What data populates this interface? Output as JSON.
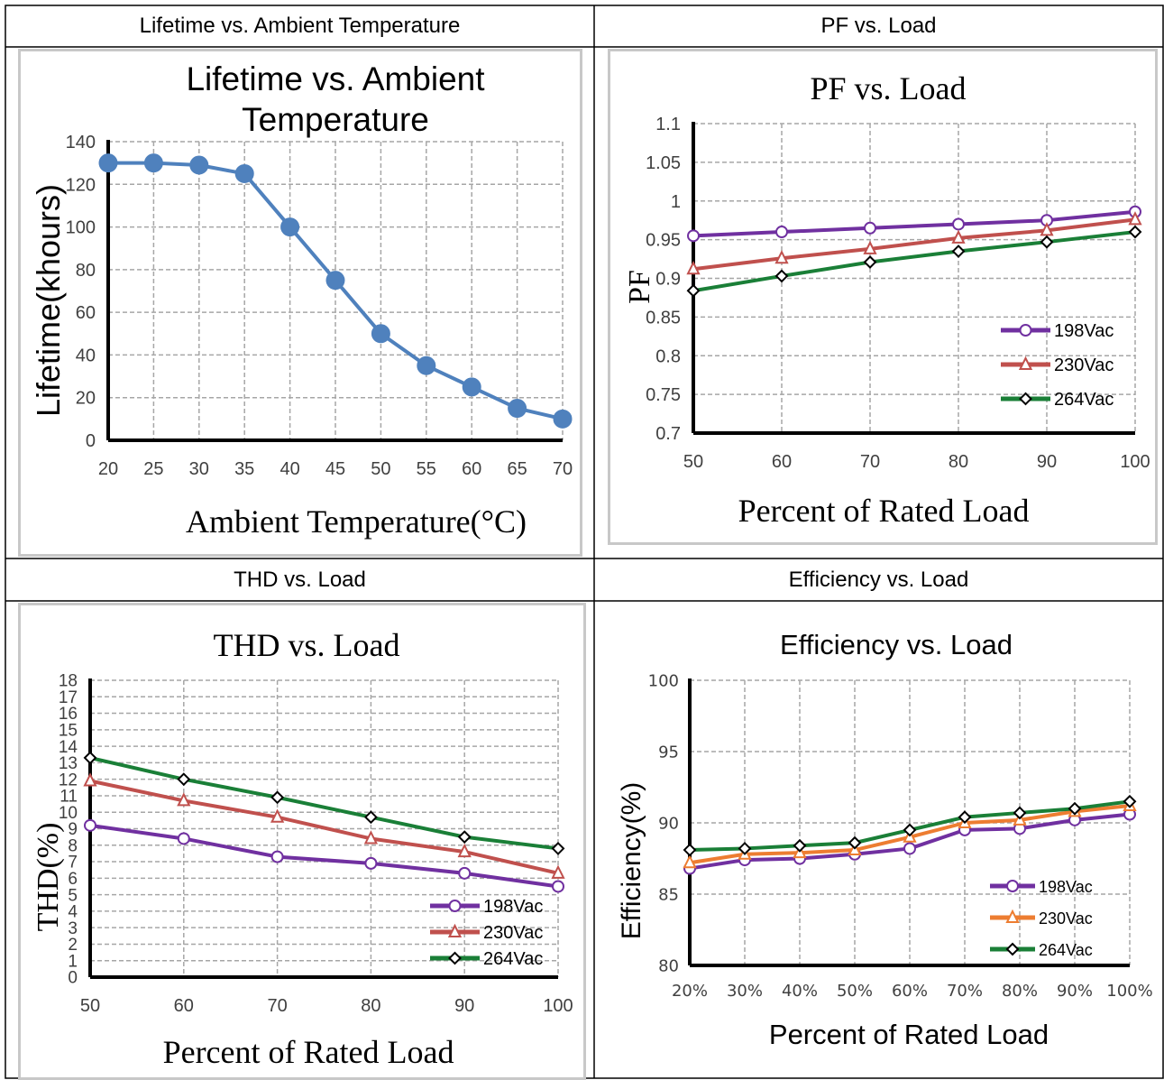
{
  "cells": [
    {
      "title": "Lifetime vs. Ambient Temperature"
    },
    {
      "title": "PF vs. Load"
    },
    {
      "title": "THD vs. Load"
    },
    {
      "title": "Efficiency vs. Load"
    }
  ],
  "chart_data": [
    {
      "type": "line",
      "title": "Lifetime vs. Ambient Temperature",
      "title_lines": [
        "Lifetime vs. Ambient",
        "Temperature"
      ],
      "xlabel": "Ambient Temperature(°C)",
      "ylabel": "Lifetime(khours)",
      "x": [
        20,
        25,
        30,
        35,
        40,
        45,
        50,
        55,
        60,
        65,
        70
      ],
      "xlim": [
        20,
        70
      ],
      "ylim": [
        0,
        140
      ],
      "yticks": [
        "0",
        "20",
        "40",
        "60",
        "80",
        "100",
        "120",
        "140"
      ],
      "xticks": [
        "20",
        "25",
        "30",
        "35",
        "40",
        "45",
        "50",
        "55",
        "60",
        "65",
        "70"
      ],
      "grid": true,
      "series": [
        {
          "values": [
            130,
            130,
            129,
            125,
            100,
            75,
            50,
            35,
            25,
            15,
            10
          ],
          "color": "#4f81bd",
          "marker": "filled-circle"
        }
      ]
    },
    {
      "type": "line",
      "title": "PF vs. Load",
      "xlabel": "Percent of Rated Load",
      "ylabel": "PF",
      "x": [
        50,
        60,
        70,
        80,
        90,
        100
      ],
      "xlim": [
        50,
        100
      ],
      "ylim": [
        0.7,
        1.1
      ],
      "yticks": [
        "0.7",
        "0.75",
        "0.8",
        "0.85",
        "0.9",
        "0.95",
        "1",
        "1.05",
        "1.1"
      ],
      "xticks": [
        "50",
        "60",
        "70",
        "80",
        "90",
        "100"
      ],
      "grid": true,
      "legend": "bottom-right",
      "series": [
        {
          "name": "198Vac",
          "values": [
            0.955,
            0.96,
            0.965,
            0.97,
            0.975,
            0.986
          ],
          "color": "#7030a0",
          "marker": "circle"
        },
        {
          "name": "230Vac",
          "values": [
            0.912,
            0.926,
            0.938,
            0.952,
            0.962,
            0.976
          ],
          "color": "#c0504d",
          "marker": "triangle"
        },
        {
          "name": "264Vac",
          "values": [
            0.884,
            0.903,
            0.921,
            0.935,
            0.947,
            0.96
          ],
          "color": "#1a7f37",
          "marker": "diamond"
        }
      ]
    },
    {
      "type": "line",
      "title": "THD vs. Load",
      "xlabel": "Percent of Rated Load",
      "ylabel": "THD(%)",
      "x": [
        50,
        60,
        70,
        80,
        90,
        100
      ],
      "xlim": [
        50,
        100
      ],
      "ylim": [
        0,
        18
      ],
      "yticks": [
        "0",
        "1",
        "2",
        "3",
        "4",
        "5",
        "6",
        "7",
        "8",
        "9",
        "10",
        "11",
        "12",
        "13",
        "14",
        "15",
        "16",
        "17",
        "18"
      ],
      "xticks": [
        "50",
        "60",
        "70",
        "80",
        "90",
        "100"
      ],
      "grid": true,
      "legend": "bottom-right",
      "series": [
        {
          "name": "198Vac",
          "values": [
            9.2,
            8.4,
            7.3,
            6.9,
            6.3,
            5.5
          ],
          "color": "#7030a0",
          "marker": "circle"
        },
        {
          "name": "230Vac",
          "values": [
            11.9,
            10.7,
            9.7,
            8.4,
            7.6,
            6.3
          ],
          "color": "#c0504d",
          "marker": "triangle"
        },
        {
          "name": "264Vac",
          "values": [
            13.3,
            12.0,
            10.9,
            9.7,
            8.5,
            7.8
          ],
          "color": "#1a7f37",
          "marker": "diamond"
        }
      ]
    },
    {
      "type": "line",
      "title": "Efficiency vs. Load",
      "xlabel": "Percent of Rated Load",
      "ylabel": "Efficiency(%)",
      "x": [
        20,
        30,
        40,
        50,
        60,
        70,
        80,
        90,
        100
      ],
      "xlim": [
        20,
        100
      ],
      "ylim": [
        80,
        100
      ],
      "yticks": [
        "80",
        "85",
        "90",
        "95",
        "100"
      ],
      "xticks": [
        "20%",
        "30%",
        "40%",
        "50%",
        "60%",
        "70%",
        "80%",
        "90%",
        "100%"
      ],
      "grid": true,
      "legend": "bottom-right",
      "series": [
        {
          "name": "198Vac",
          "values": [
            86.8,
            87.4,
            87.5,
            87.8,
            88.2,
            89.5,
            89.6,
            90.2,
            90.6
          ],
          "color": "#7030a0",
          "marker": "circle"
        },
        {
          "name": "230Vac",
          "values": [
            87.2,
            87.8,
            87.9,
            88.1,
            89.0,
            90.0,
            90.2,
            90.8,
            91.2
          ],
          "color": "#ed7d31",
          "marker": "triangle"
        },
        {
          "name": "264Vac",
          "values": [
            88.1,
            88.2,
            88.4,
            88.6,
            89.5,
            90.4,
            90.7,
            91.0,
            91.5
          ],
          "color": "#1a7f37",
          "marker": "diamond"
        }
      ]
    }
  ]
}
